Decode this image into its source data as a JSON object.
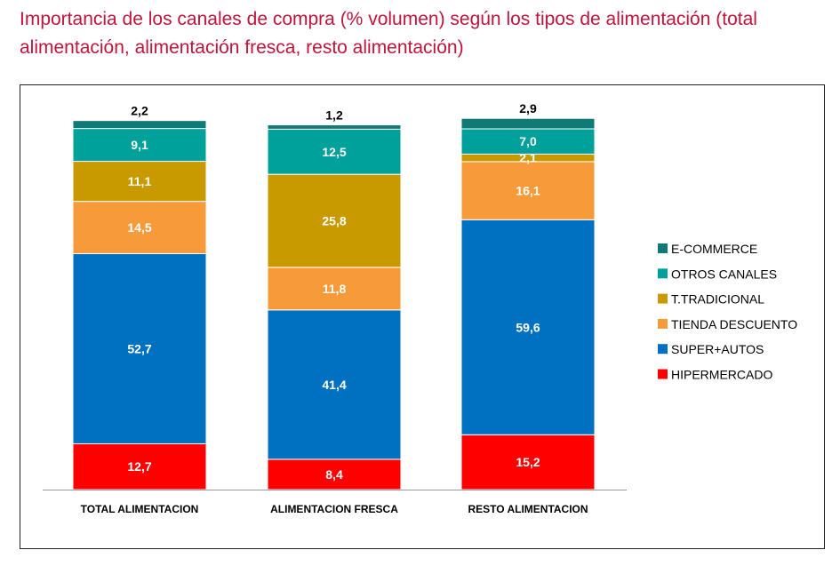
{
  "chart_data": {
    "type": "bar",
    "stacked": true,
    "title": "Importancia de los canales de compra (% volumen) según los tipos de alimentación (total alimentación, alimentación fresca, resto alimentación)",
    "categories": [
      "TOTAL ALIMENTACION",
      "ALIMENTACION FRESCA",
      "RESTO ALIMENTACION"
    ],
    "series": [
      {
        "name": "HIPERMERCADO",
        "values": [
          12.7,
          8.4,
          15.2
        ],
        "labels": [
          "12,7",
          "8,4",
          "15,2"
        ],
        "color": "#ff0000"
      },
      {
        "name": "SUPER+AUTOS",
        "values": [
          52.7,
          41.4,
          59.6
        ],
        "labels": [
          "52,7",
          "41,4",
          "59,6"
        ],
        "color": "#0070c0"
      },
      {
        "name": "TIENDA DESCUENTO",
        "values": [
          14.5,
          11.8,
          16.1
        ],
        "labels": [
          "14,5",
          "11,8",
          "16,1"
        ],
        "color": "#f79b3a"
      },
      {
        "name": "T.TRADICIONAL",
        "values": [
          11.1,
          25.8,
          2.1
        ],
        "labels": [
          "11,1",
          "25,8",
          "2,1"
        ],
        "color": "#c99a00"
      },
      {
        "name": "OTROS CANALES",
        "values": [
          9.1,
          12.5,
          7.0
        ],
        "labels": [
          "9,1",
          "12,5",
          "7,0"
        ],
        "color": "#00a19a"
      },
      {
        "name": "E-COMMERCE",
        "values": [
          2.2,
          1.2,
          2.9
        ],
        "labels": [
          "2,2",
          "1,2",
          "2,9"
        ],
        "color": "#0f7a76"
      }
    ],
    "ylim": [
      0,
      100
    ],
    "legend": "right",
    "grid": false
  }
}
